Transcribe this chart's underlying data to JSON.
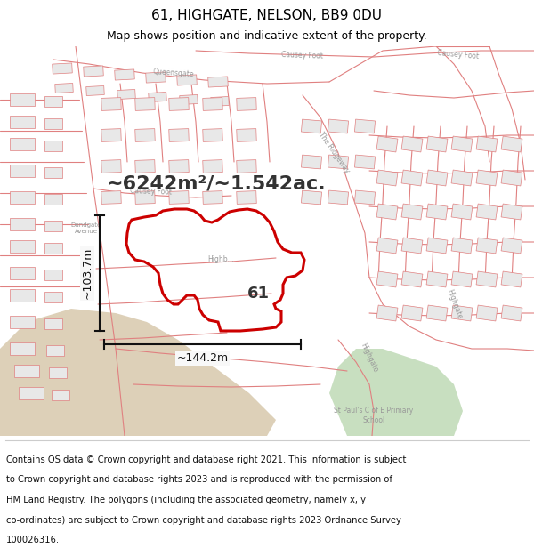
{
  "title": "61, HIGHGATE, NELSON, BB9 0DU",
  "subtitle": "Map shows position and indicative extent of the property.",
  "area_text": "~6242m²/~1.542ac.",
  "width_label": "~144.2m",
  "height_label": "~103.7m",
  "label_61": "61",
  "background_color": "#ffffff",
  "map_bg_color": "#f8f8f8",
  "map_line_color": "#e08080",
  "plot_line_color": "#cc0000",
  "green_area_color": "#c8dfc0",
  "tan_area_color": "#ddd0b8",
  "footer_text_lines": [
    "Contains OS data © Crown copyright and database right 2021. This information is subject",
    "to Crown copyright and database rights 2023 and is reproduced with the permission of",
    "HM Land Registry. The polygons (including the associated geometry, namely x, y",
    "co-ordinates) are subject to Crown copyright and database rights 2023 Ordnance Survey",
    "100026316."
  ],
  "title_fontsize": 11,
  "subtitle_fontsize": 9,
  "area_fontsize": 16,
  "label_fontsize": 13,
  "footer_fontsize": 7.2,
  "dim_fontsize": 9,
  "road_label_fontsize": 5.5,
  "bldg_color": "#e8e8e8",
  "dim_color": "#111111"
}
